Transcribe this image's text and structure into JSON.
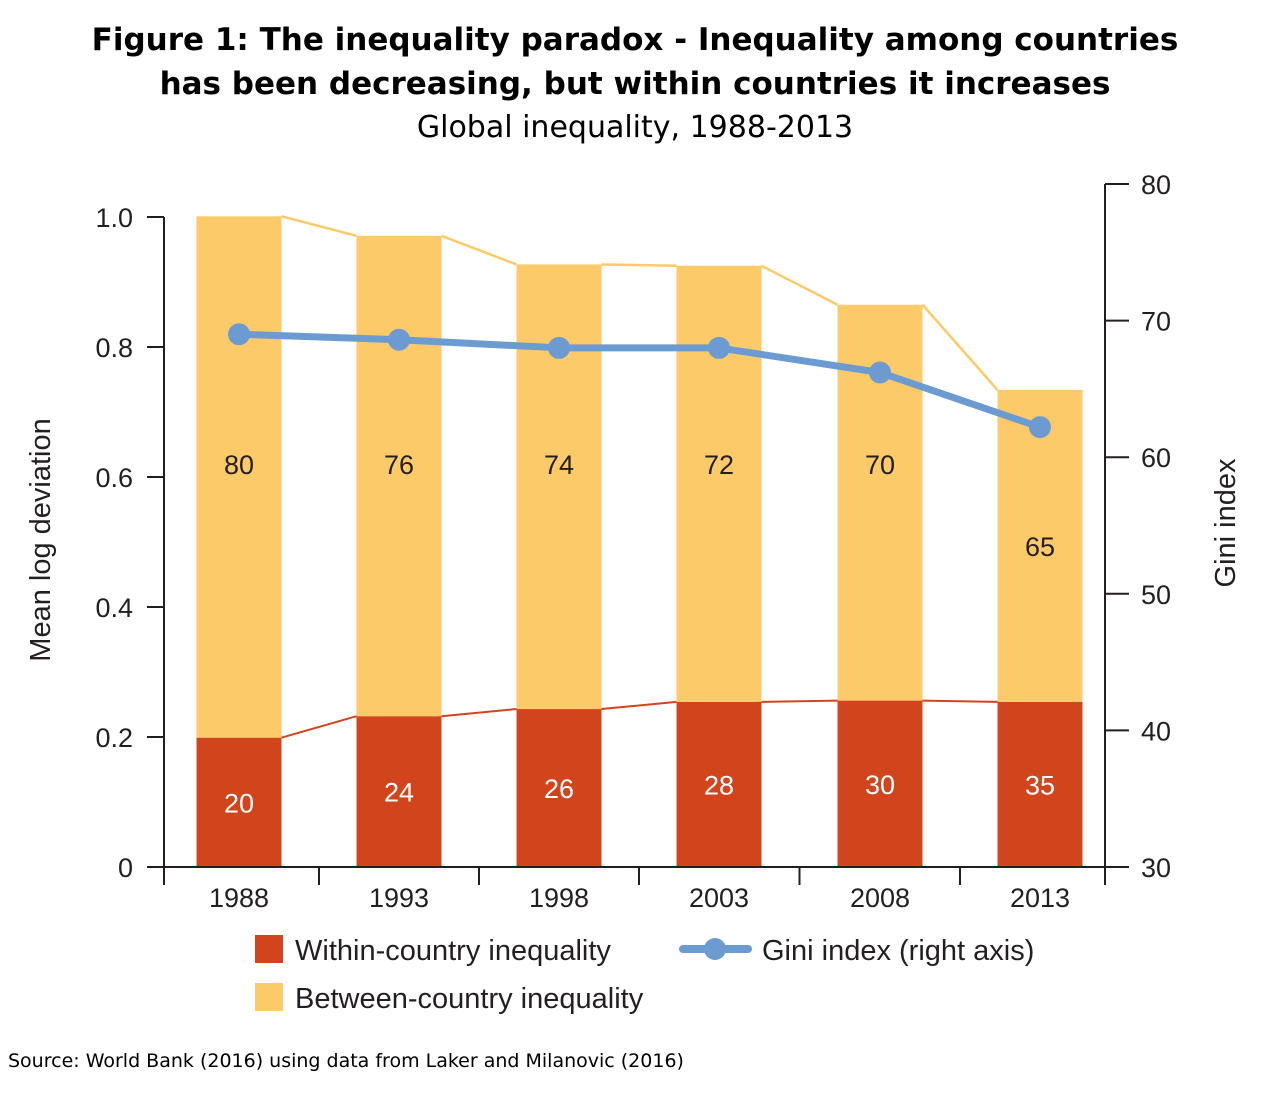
{
  "title_line1": "Figure 1: The inequality paradox - Inequality among countries",
  "title_line2": "has been decreasing, but within countries it increases",
  "subtitle": "Global inequality, 1988-2013",
  "source": "Source: World Bank (2016) using data from Laker and Milanovic (2016)",
  "colors": {
    "within": "#d1441c",
    "between": "#fdca69",
    "gini": "#6c9bd2",
    "axis": "#231f20"
  },
  "chart_data": {
    "type": "bar",
    "stacked": true,
    "categories": [
      "1988",
      "1993",
      "1998",
      "2003",
      "2008",
      "2013"
    ],
    "series": [
      {
        "name": "Within-country inequality",
        "values": [
          0.199,
          0.232,
          0.243,
          0.254,
          0.256,
          0.254
        ],
        "labels": [
          "20",
          "24",
          "26",
          "28",
          "30",
          "35"
        ]
      },
      {
        "name": "Between-country inequality",
        "values": [
          0.802,
          0.739,
          0.684,
          0.671,
          0.609,
          0.48
        ],
        "labels": [
          "80",
          "76",
          "74",
          "72",
          "70",
          "65"
        ]
      },
      {
        "name": "Gini index (right axis)",
        "type": "line",
        "axis": "right",
        "values": [
          69,
          68.6,
          68,
          68,
          66.2,
          62.2
        ]
      }
    ],
    "ylabel": "Mean log deviation",
    "ylim": [
      0,
      1.0
    ],
    "yticks": [
      "0",
      "0.2",
      "0.4",
      "0.6",
      "0.8",
      "1.0"
    ],
    "ylabel_right": "Gini index",
    "ylim_right": [
      30,
      80
    ],
    "yticks_right": [
      "30",
      "40",
      "50",
      "60",
      "70",
      "80"
    ],
    "grid": false,
    "legend_position": "bottom"
  }
}
